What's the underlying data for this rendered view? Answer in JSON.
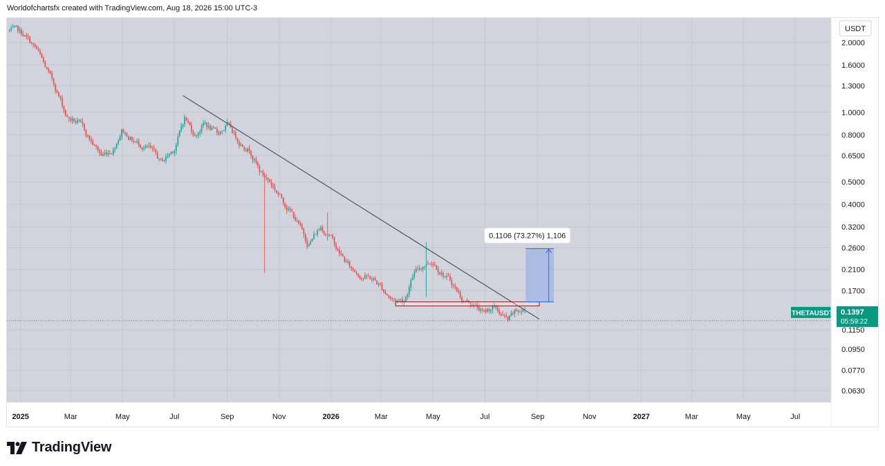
{
  "header": {
    "attribution": "Worldofchartsfx created with TradingView.com, Aug 18, 2026 15:00 UTC-3"
  },
  "brand": {
    "name": "TradingView"
  },
  "colors": {
    "up": "#26a69a",
    "down": "#ef5350",
    "trendline": "#50535e",
    "target_fill": "#9db4e6",
    "target_line": "#2962ff",
    "chart_bg": "#d1d4dc"
  },
  "chart_data": {
    "type": "candlestick",
    "symbol": "THETAUSDT",
    "currency_label": "USDT",
    "price_badge": "0.1397",
    "countdown": "05:59:22",
    "y_scale": "log",
    "ylim": [
      0.056,
      2.55
    ],
    "y_ticks": [
      "2.0000",
      "1.6000",
      "1.3000",
      "1.0000",
      "0.8000",
      "0.6500",
      "0.5000",
      "0.4000",
      "0.3200",
      "0.2600",
      "0.2100",
      "0.1700",
      "0.1150",
      "0.0950",
      "0.0770",
      "0.0630"
    ],
    "x_ticks": [
      "2025",
      "Mar",
      "May",
      "Jul",
      "Sep",
      "Nov",
      "2026",
      "Mar",
      "May",
      "Jul",
      "Sep",
      "Nov",
      "2027",
      "Mar",
      "May",
      "Jul"
    ],
    "xlim": [
      "2024-12-16",
      "2027-08-12"
    ],
    "last_price": 0.1397,
    "price_anchors": [
      [
        "2024-12-19",
        2.25
      ],
      [
        "2025-01-05",
        2.15
      ],
      [
        "2025-01-20",
        1.85
      ],
      [
        "2025-02-01",
        1.5
      ],
      [
        "2025-02-12",
        1.25
      ],
      [
        "2025-02-25",
        0.95
      ],
      [
        "2025-03-10",
        0.9
      ],
      [
        "2025-03-25",
        0.75
      ],
      [
        "2025-04-06",
        0.65
      ],
      [
        "2025-04-20",
        0.7
      ],
      [
        "2025-04-30",
        0.85
      ],
      [
        "2025-05-15",
        0.75
      ],
      [
        "2025-06-01",
        0.7
      ],
      [
        "2025-06-15",
        0.6
      ],
      [
        "2025-07-01",
        0.7
      ],
      [
        "2025-07-13",
        0.95
      ],
      [
        "2025-07-25",
        0.8
      ],
      [
        "2025-08-05",
        0.9
      ],
      [
        "2025-08-20",
        0.8
      ],
      [
        "2025-09-01",
        0.88
      ],
      [
        "2025-09-15",
        0.75
      ],
      [
        "2025-09-28",
        0.7
      ],
      [
        "2025-10-10",
        0.55
      ],
      [
        "2025-10-22",
        0.5
      ],
      [
        "2025-11-05",
        0.42
      ],
      [
        "2025-11-20",
        0.35
      ],
      [
        "2025-12-05",
        0.27
      ],
      [
        "2025-12-20",
        0.32
      ],
      [
        "2025-12-30",
        0.3
      ],
      [
        "2026-01-10",
        0.25
      ],
      [
        "2026-01-25",
        0.21
      ],
      [
        "2026-02-05",
        0.2
      ],
      [
        "2026-02-20",
        0.19
      ],
      [
        "2026-03-05",
        0.17
      ],
      [
        "2026-03-15",
        0.155
      ],
      [
        "2026-03-28",
        0.155
      ],
      [
        "2026-04-08",
        0.2
      ],
      [
        "2026-04-20",
        0.22
      ],
      [
        "2026-04-30",
        0.23
      ],
      [
        "2026-05-10",
        0.21
      ],
      [
        "2026-05-25",
        0.18
      ],
      [
        "2026-06-05",
        0.155
      ],
      [
        "2026-06-18",
        0.15
      ],
      [
        "2026-06-30",
        0.135
      ],
      [
        "2026-07-10",
        0.145
      ],
      [
        "2026-07-20",
        0.135
      ],
      [
        "2026-07-28",
        0.125
      ],
      [
        "2026-08-05",
        0.135
      ],
      [
        "2026-08-18",
        0.14
      ]
    ],
    "wick_events": [
      {
        "date": "2025-10-14",
        "low": 0.203,
        "high": 0.55
      },
      {
        "date": "2026-04-23",
        "low": 0.16,
        "high": 0.275
      },
      {
        "date": "2025-12-28",
        "low": 0.28,
        "high": 0.37
      }
    ],
    "trendline": {
      "from": [
        "2025-07-11",
        1.18
      ],
      "to": [
        "2026-09-03",
        0.128
      ]
    },
    "support_zone": {
      "from": "2026-03-18",
      "to": "2026-09-03",
      "low": 0.146,
      "high": 0.152
    },
    "target_box": {
      "from": "2026-08-18",
      "to": "2026-09-20",
      "low": 0.152,
      "high": 0.258
    },
    "target_label": "0.1106 (73.27%) 1,106"
  }
}
